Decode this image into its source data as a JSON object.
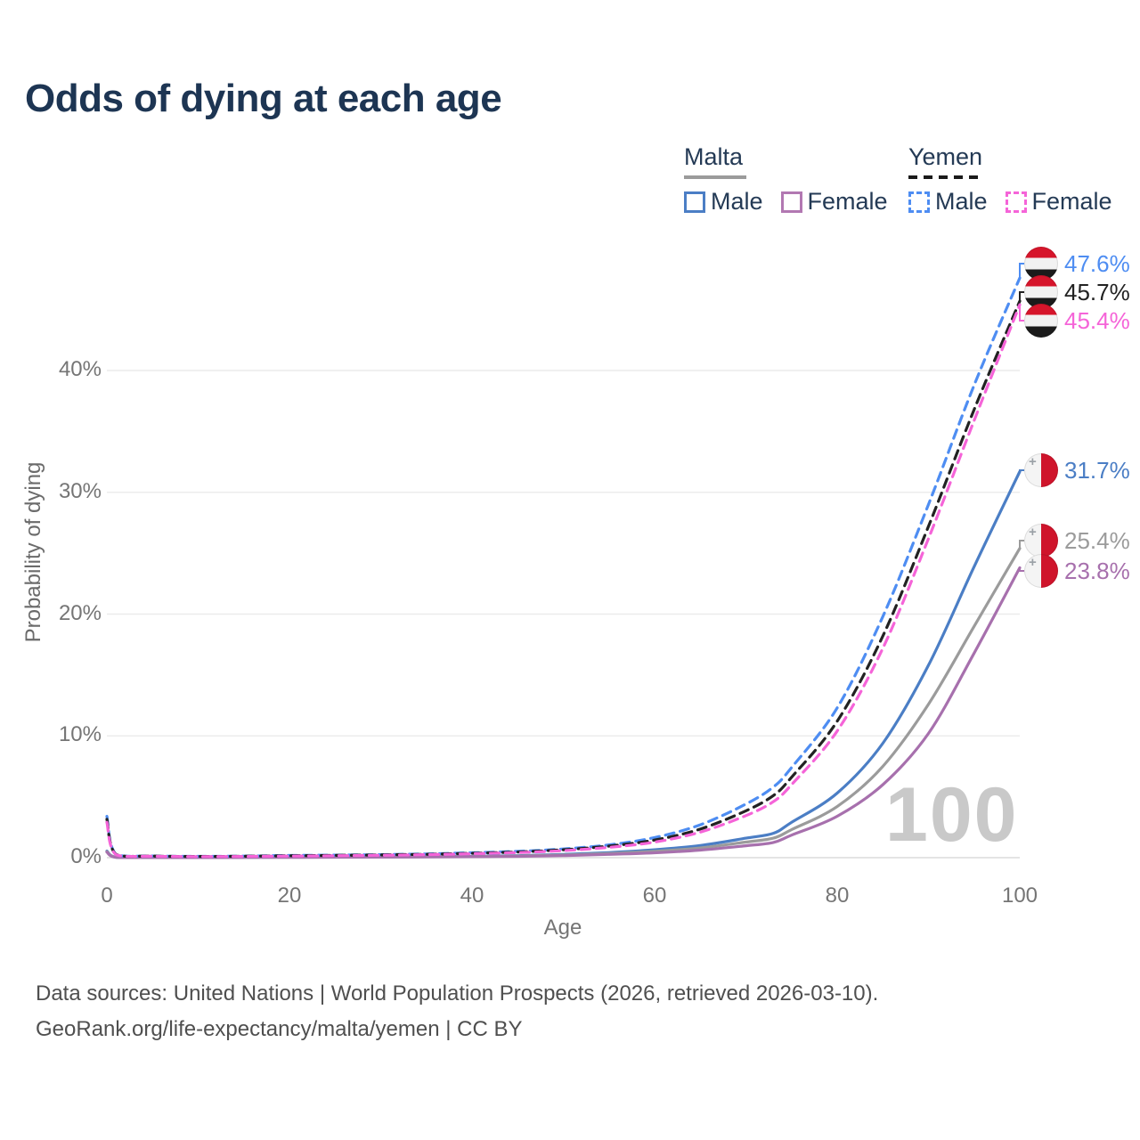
{
  "title": "Odds of dying at each age",
  "legend": {
    "groups": [
      {
        "country": "Malta",
        "line_style": "solid",
        "line_color": "#9b9b9b",
        "items": [
          {
            "label": "Male",
            "color": "#4b7ec5"
          },
          {
            "label": "Female",
            "color": "#b278b2"
          }
        ]
      },
      {
        "country": "Yemen",
        "line_style": "dashed",
        "line_color": "#1a1a1a",
        "items": [
          {
            "label": "Male",
            "color": "#4e8df2"
          },
          {
            "label": "Female",
            "color": "#f564d8"
          }
        ]
      }
    ]
  },
  "axes": {
    "x": {
      "label": "Age",
      "ticks": [
        "0",
        "20",
        "40",
        "60",
        "80",
        "100"
      ],
      "values": [
        0,
        20,
        40,
        60,
        80,
        100
      ]
    },
    "y": {
      "label": "Probability of dying",
      "ticks": [
        "0%",
        "10%",
        "20%",
        "30%",
        "40%"
      ],
      "values": [
        0,
        10,
        20,
        30,
        40
      ]
    }
  },
  "watermark": "100",
  "footer": {
    "line1": "Data sources: United Nations | World Population Prospects (2026, retrieved 2026-03-10).",
    "line2": "GeoRank.org/life-expectancy/malta/yemen | CC BY"
  },
  "chart_data": {
    "type": "line",
    "title": "Odds of dying at each age",
    "xlabel": "Age",
    "ylabel": "Probability of dying",
    "x_range": [
      0,
      100
    ],
    "y_axis_percent_range": [
      0,
      40
    ],
    "grid": true,
    "legend_position": "top-right",
    "ages": [
      0,
      1,
      5,
      10,
      15,
      20,
      25,
      30,
      35,
      40,
      45,
      50,
      55,
      60,
      65,
      70,
      73,
      75,
      80,
      85,
      90,
      95,
      100
    ],
    "series": [
      {
        "name": "Yemen Male",
        "country": "Yemen",
        "sex": "male",
        "style": "dashed",
        "color": "#4e8df2",
        "label": "47.6%",
        "end_value_percent": 47.6,
        "values": [
          3.4,
          0.28,
          0.14,
          0.11,
          0.13,
          0.18,
          0.21,
          0.25,
          0.31,
          0.4,
          0.52,
          0.72,
          1.05,
          1.65,
          2.7,
          4.4,
          5.8,
          7.4,
          12.3,
          19.8,
          29.0,
          38.8,
          47.6
        ]
      },
      {
        "name": "Yemen",
        "country": "Yemen",
        "sex": "all",
        "style": "dashed",
        "color": "#222222",
        "label": "45.7%",
        "end_value_percent": 45.7,
        "values": [
          3.15,
          0.26,
          0.13,
          0.1,
          0.12,
          0.16,
          0.19,
          0.23,
          0.28,
          0.36,
          0.47,
          0.65,
          0.95,
          1.45,
          2.35,
          3.85,
          5.1,
          6.6,
          11.2,
          18.2,
          27.2,
          36.8,
          45.7
        ]
      },
      {
        "name": "Yemen Female",
        "country": "Yemen",
        "sex": "female",
        "style": "dashed",
        "color": "#f564d8",
        "label": "45.4%",
        "end_value_percent": 45.4,
        "values": [
          2.9,
          0.24,
          0.12,
          0.09,
          0.1,
          0.13,
          0.16,
          0.2,
          0.25,
          0.32,
          0.42,
          0.58,
          0.85,
          1.28,
          2.1,
          3.45,
          4.6,
          6.0,
          10.4,
          17.2,
          26.2,
          35.9,
          45.4
        ]
      },
      {
        "name": "Malta Male",
        "country": "Malta",
        "sex": "male",
        "style": "solid",
        "color": "#4b7ec5",
        "label": "31.7%",
        "end_value_percent": 31.7,
        "values": [
          0.55,
          0.04,
          0.015,
          0.012,
          0.03,
          0.05,
          0.055,
          0.06,
          0.08,
          0.11,
          0.17,
          0.27,
          0.42,
          0.65,
          1.0,
          1.6,
          2.0,
          2.9,
          5.3,
          9.4,
          15.8,
          23.9,
          31.7
        ]
      },
      {
        "name": "Malta",
        "country": "Malta",
        "sex": "all",
        "style": "solid",
        "color": "#9b9b9b",
        "label": "25.4%",
        "end_value_percent": 25.4,
        "values": [
          0.5,
          0.035,
          0.013,
          0.01,
          0.025,
          0.04,
          0.045,
          0.05,
          0.07,
          0.09,
          0.14,
          0.22,
          0.34,
          0.52,
          0.8,
          1.28,
          1.6,
          2.3,
          4.2,
          7.5,
          12.6,
          19.0,
          25.4
        ]
      },
      {
        "name": "Malta Female",
        "country": "Malta",
        "sex": "female",
        "style": "solid",
        "color": "#a770ad",
        "label": "23.8%",
        "end_value_percent": 23.8,
        "values": [
          0.45,
          0.03,
          0.012,
          0.009,
          0.02,
          0.03,
          0.035,
          0.045,
          0.06,
          0.08,
          0.11,
          0.17,
          0.27,
          0.4,
          0.62,
          0.98,
          1.25,
          1.85,
          3.4,
          6.0,
          10.2,
          16.8,
          23.8
        ]
      }
    ]
  }
}
